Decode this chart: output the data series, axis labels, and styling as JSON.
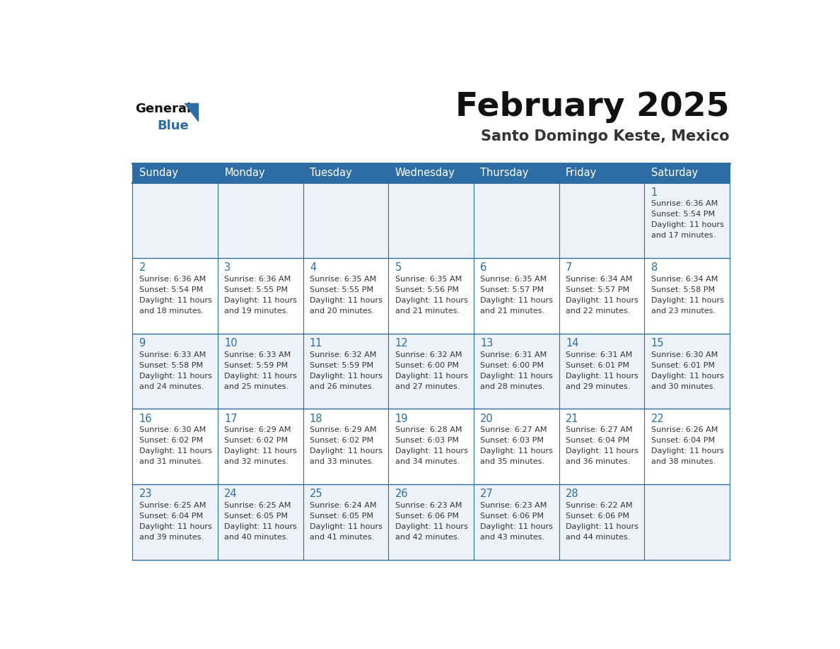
{
  "title": "February 2025",
  "subtitle": "Santo Domingo Keste, Mexico",
  "days_of_week": [
    "Sunday",
    "Monday",
    "Tuesday",
    "Wednesday",
    "Thursday",
    "Friday",
    "Saturday"
  ],
  "header_bg": "#2e6da4",
  "header_text": "#ffffff",
  "cell_bg_odd": "#edf2f7",
  "cell_bg_even": "#ffffff",
  "day_num_color": "#2e6da4",
  "info_color": "#333333",
  "grid_color": "#2e6da4",
  "title_color": "#111111",
  "subtitle_color": "#333333",
  "logo_general_color": "#111111",
  "logo_blue_color": "#2e6da4",
  "logo_triangle_color": "#2e6da4",
  "weeks": [
    [
      {
        "day": null,
        "sunrise": null,
        "sunset": null,
        "daylight": null
      },
      {
        "day": null,
        "sunrise": null,
        "sunset": null,
        "daylight": null
      },
      {
        "day": null,
        "sunrise": null,
        "sunset": null,
        "daylight": null
      },
      {
        "day": null,
        "sunrise": null,
        "sunset": null,
        "daylight": null
      },
      {
        "day": null,
        "sunrise": null,
        "sunset": null,
        "daylight": null
      },
      {
        "day": null,
        "sunrise": null,
        "sunset": null,
        "daylight": null
      },
      {
        "day": 1,
        "sunrise": "6:36 AM",
        "sunset": "5:54 PM",
        "daylight": "11 hours\nand 17 minutes."
      }
    ],
    [
      {
        "day": 2,
        "sunrise": "6:36 AM",
        "sunset": "5:54 PM",
        "daylight": "11 hours\nand 18 minutes."
      },
      {
        "day": 3,
        "sunrise": "6:36 AM",
        "sunset": "5:55 PM",
        "daylight": "11 hours\nand 19 minutes."
      },
      {
        "day": 4,
        "sunrise": "6:35 AM",
        "sunset": "5:55 PM",
        "daylight": "11 hours\nand 20 minutes."
      },
      {
        "day": 5,
        "sunrise": "6:35 AM",
        "sunset": "5:56 PM",
        "daylight": "11 hours\nand 21 minutes."
      },
      {
        "day": 6,
        "sunrise": "6:35 AM",
        "sunset": "5:57 PM",
        "daylight": "11 hours\nand 21 minutes."
      },
      {
        "day": 7,
        "sunrise": "6:34 AM",
        "sunset": "5:57 PM",
        "daylight": "11 hours\nand 22 minutes."
      },
      {
        "day": 8,
        "sunrise": "6:34 AM",
        "sunset": "5:58 PM",
        "daylight": "11 hours\nand 23 minutes."
      }
    ],
    [
      {
        "day": 9,
        "sunrise": "6:33 AM",
        "sunset": "5:58 PM",
        "daylight": "11 hours\nand 24 minutes."
      },
      {
        "day": 10,
        "sunrise": "6:33 AM",
        "sunset": "5:59 PM",
        "daylight": "11 hours\nand 25 minutes."
      },
      {
        "day": 11,
        "sunrise": "6:32 AM",
        "sunset": "5:59 PM",
        "daylight": "11 hours\nand 26 minutes."
      },
      {
        "day": 12,
        "sunrise": "6:32 AM",
        "sunset": "6:00 PM",
        "daylight": "11 hours\nand 27 minutes."
      },
      {
        "day": 13,
        "sunrise": "6:31 AM",
        "sunset": "6:00 PM",
        "daylight": "11 hours\nand 28 minutes."
      },
      {
        "day": 14,
        "sunrise": "6:31 AM",
        "sunset": "6:01 PM",
        "daylight": "11 hours\nand 29 minutes."
      },
      {
        "day": 15,
        "sunrise": "6:30 AM",
        "sunset": "6:01 PM",
        "daylight": "11 hours\nand 30 minutes."
      }
    ],
    [
      {
        "day": 16,
        "sunrise": "6:30 AM",
        "sunset": "6:02 PM",
        "daylight": "11 hours\nand 31 minutes."
      },
      {
        "day": 17,
        "sunrise": "6:29 AM",
        "sunset": "6:02 PM",
        "daylight": "11 hours\nand 32 minutes."
      },
      {
        "day": 18,
        "sunrise": "6:29 AM",
        "sunset": "6:02 PM",
        "daylight": "11 hours\nand 33 minutes."
      },
      {
        "day": 19,
        "sunrise": "6:28 AM",
        "sunset": "6:03 PM",
        "daylight": "11 hours\nand 34 minutes."
      },
      {
        "day": 20,
        "sunrise": "6:27 AM",
        "sunset": "6:03 PM",
        "daylight": "11 hours\nand 35 minutes."
      },
      {
        "day": 21,
        "sunrise": "6:27 AM",
        "sunset": "6:04 PM",
        "daylight": "11 hours\nand 36 minutes."
      },
      {
        "day": 22,
        "sunrise": "6:26 AM",
        "sunset": "6:04 PM",
        "daylight": "11 hours\nand 38 minutes."
      }
    ],
    [
      {
        "day": 23,
        "sunrise": "6:25 AM",
        "sunset": "6:04 PM",
        "daylight": "11 hours\nand 39 minutes."
      },
      {
        "day": 24,
        "sunrise": "6:25 AM",
        "sunset": "6:05 PM",
        "daylight": "11 hours\nand 40 minutes."
      },
      {
        "day": 25,
        "sunrise": "6:24 AM",
        "sunset": "6:05 PM",
        "daylight": "11 hours\nand 41 minutes."
      },
      {
        "day": 26,
        "sunrise": "6:23 AM",
        "sunset": "6:06 PM",
        "daylight": "11 hours\nand 42 minutes."
      },
      {
        "day": 27,
        "sunrise": "6:23 AM",
        "sunset": "6:06 PM",
        "daylight": "11 hours\nand 43 minutes."
      },
      {
        "day": 28,
        "sunrise": "6:22 AM",
        "sunset": "6:06 PM",
        "daylight": "11 hours\nand 44 minutes."
      },
      {
        "day": null,
        "sunrise": null,
        "sunset": null,
        "daylight": null
      }
    ]
  ]
}
